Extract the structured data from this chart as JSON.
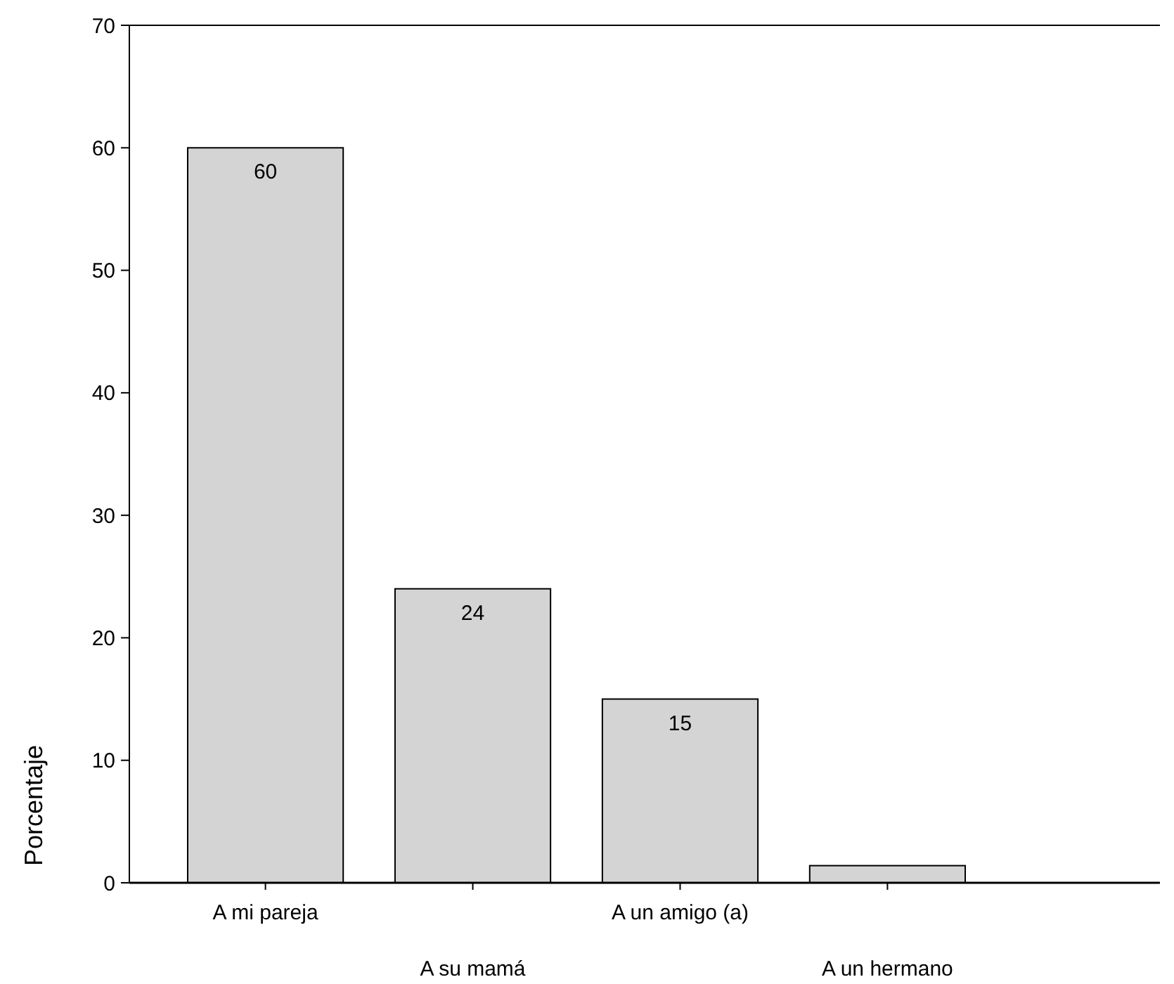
{
  "chart_data": {
    "type": "bar",
    "ylabel": "Porcentaje",
    "categories": [
      "A mi pareja",
      "A su mamá",
      "A un amigo (a)",
      "A un hermano"
    ],
    "values": [
      60,
      24,
      15,
      1.4
    ],
    "value_labels": [
      "60",
      "24",
      "15",
      null
    ],
    "color": "#d4d4d4",
    "ylim": [
      0,
      70
    ],
    "yticks": [
      0,
      10,
      20,
      30,
      40,
      50,
      60,
      70
    ],
    "grid": false
  }
}
